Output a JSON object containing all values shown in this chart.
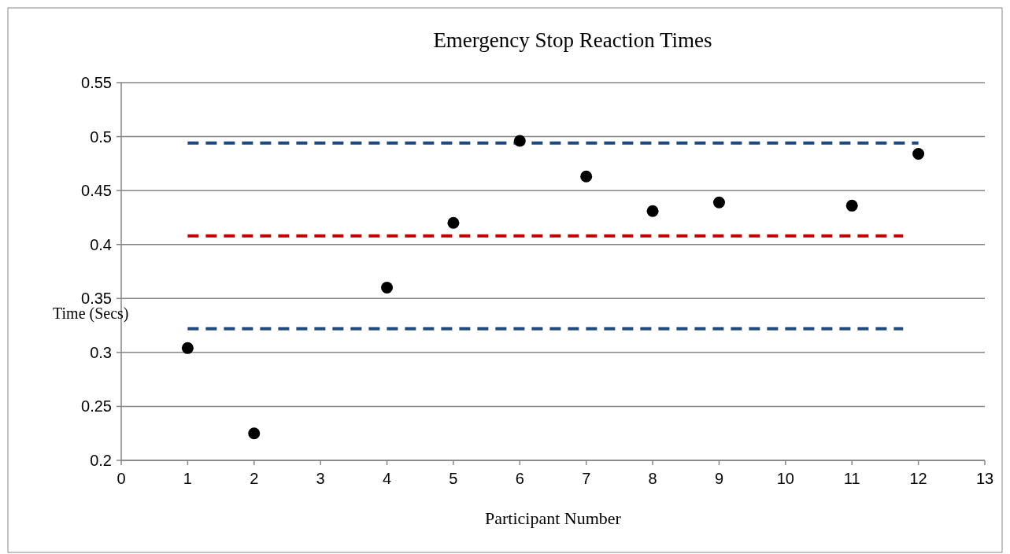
{
  "chart_data": {
    "type": "scatter",
    "title": "Emergency Stop Reaction Times",
    "xlabel": "Participant Number",
    "ylabel": "Time (Secs)",
    "xlim": [
      0,
      13
    ],
    "xticks": [
      0,
      1,
      2,
      3,
      4,
      5,
      6,
      7,
      8,
      9,
      10,
      11,
      12,
      13
    ],
    "ylim": [
      0.2,
      0.55
    ],
    "yticks": [
      0.2,
      0.25,
      0.3,
      0.35,
      0.4,
      0.45,
      0.5,
      0.55
    ],
    "grid": "y",
    "series": [
      {
        "type": "line",
        "x": [
          1,
          12
        ],
        "values": [
          0.494,
          0.494
        ],
        "color": "#1f497d",
        "line_style": "dashed",
        "marker": "none"
      },
      {
        "type": "line",
        "x": [
          1,
          11.77
        ],
        "values": [
          0.408,
          0.408
        ],
        "color": "#c00000",
        "line_style": "dashed",
        "marker": "none"
      },
      {
        "type": "line",
        "x": [
          1,
          11.77
        ],
        "values": [
          0.322,
          0.322
        ],
        "color": "#1f497d",
        "line_style": "dashed",
        "marker": "none"
      },
      {
        "x": [
          1,
          2,
          4,
          5,
          6,
          7,
          8,
          9,
          11,
          12
        ],
        "values": [
          0.304,
          0.225,
          0.36,
          0.42,
          0.496,
          0.463,
          0.431,
          0.439,
          0.436,
          0.484
        ],
        "color": "#000000",
        "marker": "circle"
      }
    ]
  }
}
